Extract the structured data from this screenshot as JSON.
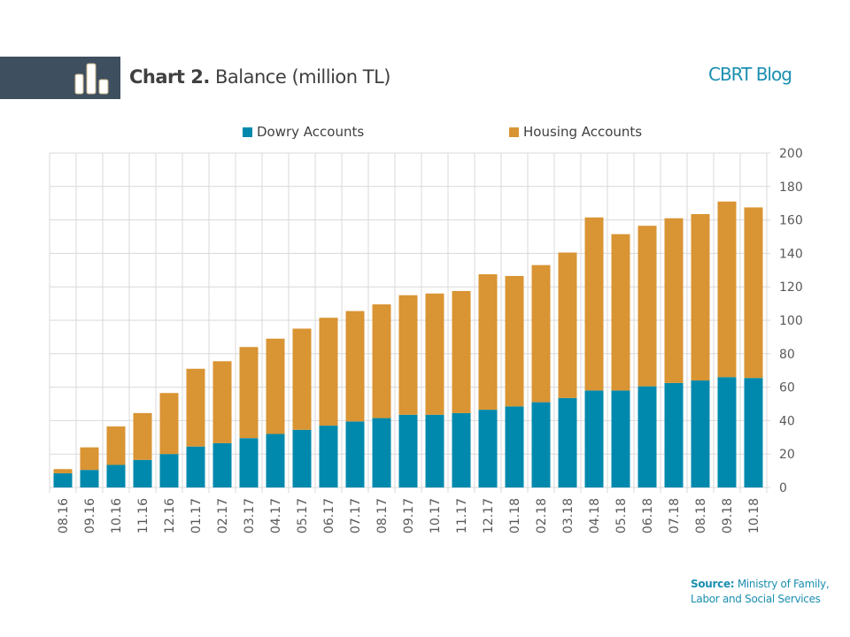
{
  "header": {
    "chart_number": "Chart 2.",
    "chart_title": "Balance (million TL)",
    "blog_name": "CBRT Blog",
    "icon": "bar-chart-icon"
  },
  "source": {
    "label": "Source:",
    "text_line1": "Ministry of Family,",
    "text_line2": "Labor and Social Services"
  },
  "colors": {
    "dowry": "#0089ad",
    "housing": "#d99433",
    "header_band": "#3e4f5f",
    "accent": "#1b8fb0"
  },
  "chart_data": {
    "type": "bar",
    "stacked": true,
    "title": "Chart 2. Balance (million TL)",
    "xlabel": "",
    "ylabel": "",
    "ylim": [
      0,
      200
    ],
    "y_ticks": [
      0,
      20,
      40,
      60,
      80,
      100,
      120,
      140,
      160,
      180,
      200
    ],
    "y_axis_position": "right",
    "grid": true,
    "legend_position": "top",
    "categories": [
      "08.16",
      "09.16",
      "10.16",
      "11.16",
      "12.16",
      "01.17",
      "02.17",
      "03.17",
      "04.17",
      "05.17",
      "06.17",
      "07.17",
      "08.17",
      "09.17",
      "10.17",
      "11.17",
      "12.17",
      "01.18",
      "02.18",
      "03.18",
      "04.18",
      "05.18",
      "06.18",
      "07.18",
      "08.18",
      "09.18",
      "10.18"
    ],
    "series": [
      {
        "name": "Dowry Accounts",
        "color": "#0089ad",
        "values": [
          8.5,
          10.5,
          13.5,
          16.5,
          20,
          24.5,
          26.5,
          29.5,
          32,
          34.5,
          37,
          39.5,
          41.5,
          43.5,
          43.5,
          44.5,
          46.5,
          48.5,
          51,
          53.5,
          58,
          58,
          60.5,
          62.5,
          64,
          66,
          65.5
        ]
      },
      {
        "name": "Housing Accounts",
        "color": "#d99433",
        "values": [
          2.5,
          13.5,
          23,
          28,
          36.5,
          46.5,
          49,
          54.5,
          57,
          60.5,
          64.5,
          66,
          68,
          71.5,
          72.5,
          73,
          81,
          78,
          82,
          87,
          103.5,
          93.5,
          96,
          98.5,
          99.5,
          105,
          102
        ]
      }
    ]
  }
}
